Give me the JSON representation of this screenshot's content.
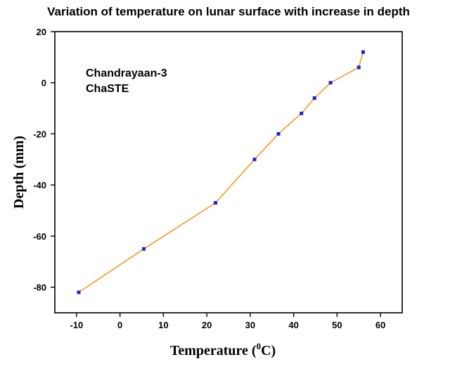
{
  "chart_data": {
    "type": "line",
    "title": "Variation of temperature on lunar surface with increase in depth",
    "xlabel": "Temperature (",
    "xlabel_sup": "0",
    "xlabel_tail": "C)",
    "ylabel": "Depth (mm)",
    "xlim": [
      -15,
      65
    ],
    "ylim": [
      -90,
      20
    ],
    "x_ticks": [
      -10,
      0,
      10,
      20,
      30,
      40,
      50,
      60
    ],
    "y_ticks": [
      20,
      0,
      -20,
      -40,
      -60,
      -80
    ],
    "annotations": [
      "Chandrayaan-3",
      "ChaSTE"
    ],
    "grid": false,
    "line_color": "#f59a23",
    "marker_color": "#1f1fe0",
    "series": [
      {
        "points": [
          {
            "x": -9.5,
            "y": -82
          },
          {
            "x": 5.5,
            "y": -65
          },
          {
            "x": 22.0,
            "y": -47
          },
          {
            "x": 31.0,
            "y": -30
          },
          {
            "x": 36.5,
            "y": -20
          },
          {
            "x": 41.8,
            "y": -12
          },
          {
            "x": 44.8,
            "y": -6
          },
          {
            "x": 48.5,
            "y": 0
          },
          {
            "x": 55.0,
            "y": 6
          },
          {
            "x": 56.0,
            "y": 12
          }
        ]
      }
    ]
  }
}
